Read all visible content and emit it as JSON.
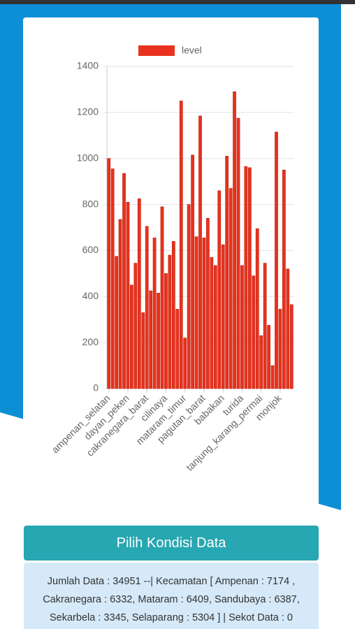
{
  "chart_data": {
    "type": "bar",
    "legend": "level",
    "color": "#e8321e",
    "border_color": "#c0200f",
    "categories": [
      "ampenan_selatan",
      null,
      null,
      null,
      null,
      "dayan_peken",
      null,
      null,
      null,
      null,
      "cakranegara_barat",
      null,
      null,
      null,
      null,
      "cilinaya",
      null,
      null,
      null,
      null,
      "mataram_timur",
      null,
      null,
      null,
      null,
      "pagutan_barat",
      null,
      null,
      null,
      null,
      "babakan",
      null,
      null,
      null,
      null,
      "turida",
      null,
      null,
      null,
      null,
      "tanjung_karang_permai",
      null,
      null,
      null,
      null,
      "monjok",
      null,
      null,
      null
    ],
    "values": [
      1000,
      955,
      575,
      735,
      935,
      810,
      450,
      545,
      825,
      330,
      705,
      425,
      655,
      415,
      790,
      500,
      580,
      640,
      345,
      1250,
      220,
      800,
      1015,
      660,
      1185,
      655,
      740,
      570,
      535,
      860,
      625,
      1010,
      870,
      1290,
      1175,
      535,
      965,
      960,
      490,
      695,
      230,
      545,
      275,
      100,
      1115,
      345,
      950,
      520,
      365
    ],
    "ylim": [
      0,
      1400
    ],
    "yticks": [
      0,
      200,
      400,
      600,
      800,
      1000,
      1200,
      1400
    ],
    "grid": true
  },
  "button": "Pilih Kondisi Data",
  "info": "Jumlah Data : 34951 --| Kecamatan [ Ampenan : 7174 , Cakranegara : 6332, Mataram : 6409, Sandubaya : 6387, Sekarbela : 3345, Selaparang : 5304 ] | Sekot Data : 0"
}
